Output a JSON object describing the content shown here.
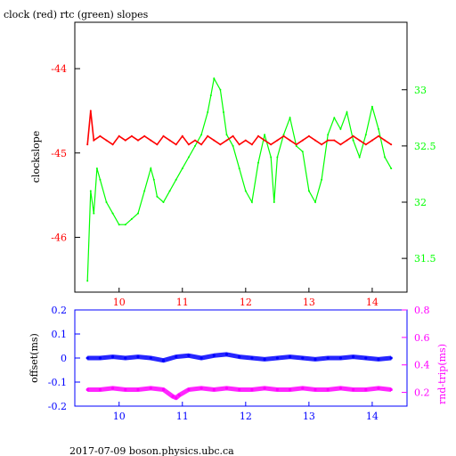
{
  "title": "clock (red) rtc (green) slopes",
  "footer": "2017-07-09  boson.physics.ubc.ca",
  "colors": {
    "red": "#ff0000",
    "green": "#00ff00",
    "blue": "#0000ff",
    "magenta": "#ff00ff",
    "frame": "#000000"
  },
  "chart_data": [
    {
      "type": "line",
      "title": "clock (red) rtc (green) slopes",
      "ylabel": "clockslope",
      "ylabel_right": "",
      "xlim": [
        9.3,
        14.55
      ],
      "ylim": [
        -46.65,
        -43.45
      ],
      "ylim_right": [
        31.2,
        33.6
      ],
      "x_ticks": [
        10,
        11,
        12,
        13,
        14
      ],
      "y_ticks": [
        -44,
        -45,
        -46
      ],
      "y_ticks_right": [
        33,
        32.5,
        32,
        31.5
      ],
      "series": [
        {
          "color": "red",
          "axis": "left",
          "x": [
            9.5,
            9.55,
            9.6,
            9.7,
            9.8,
            9.9,
            10.0,
            10.1,
            10.2,
            10.3,
            10.4,
            10.5,
            10.6,
            10.7,
            10.8,
            10.9,
            11.0,
            11.1,
            11.2,
            11.3,
            11.4,
            11.5,
            11.6,
            11.7,
            11.8,
            11.9,
            12.0,
            12.1,
            12.2,
            12.3,
            12.4,
            12.5,
            12.6,
            12.7,
            12.8,
            12.9,
            13.0,
            13.1,
            13.2,
            13.3,
            13.4,
            13.5,
            13.6,
            13.7,
            13.8,
            13.9,
            14.0,
            14.1,
            14.2,
            14.3
          ],
          "y": [
            -44.9,
            -44.5,
            -44.85,
            -44.8,
            -44.85,
            -44.9,
            -44.8,
            -44.85,
            -44.8,
            -44.85,
            -44.8,
            -44.85,
            -44.9,
            -44.8,
            -44.85,
            -44.9,
            -44.8,
            -44.9,
            -44.85,
            -44.9,
            -44.8,
            -44.85,
            -44.9,
            -44.85,
            -44.8,
            -44.9,
            -44.85,
            -44.9,
            -44.8,
            -44.85,
            -44.9,
            -44.85,
            -44.8,
            -44.85,
            -44.9,
            -44.85,
            -44.8,
            -44.85,
            -44.9,
            -44.85,
            -44.85,
            -44.9,
            -44.85,
            -44.8,
            -44.85,
            -44.9,
            -44.85,
            -44.8,
            -44.85,
            -44.9
          ]
        },
        {
          "color": "green",
          "axis": "right",
          "x": [
            9.5,
            9.55,
            9.6,
            9.65,
            9.7,
            9.8,
            9.9,
            10.0,
            10.1,
            10.2,
            10.3,
            10.4,
            10.5,
            10.55,
            10.6,
            10.7,
            10.8,
            10.9,
            11.0,
            11.1,
            11.2,
            11.3,
            11.4,
            11.45,
            11.5,
            11.6,
            11.65,
            11.7,
            11.8,
            11.9,
            12.0,
            12.1,
            12.2,
            12.3,
            12.4,
            12.45,
            12.5,
            12.6,
            12.7,
            12.8,
            12.9,
            13.0,
            13.1,
            13.2,
            13.3,
            13.4,
            13.5,
            13.6,
            13.7,
            13.8,
            13.9,
            14.0,
            14.1,
            14.2,
            14.3
          ],
          "y": [
            31.3,
            32.1,
            31.9,
            32.3,
            32.2,
            32.0,
            31.9,
            31.8,
            31.8,
            31.85,
            31.9,
            32.1,
            32.3,
            32.2,
            32.05,
            32.0,
            32.1,
            32.2,
            32.3,
            32.4,
            32.5,
            32.6,
            32.8,
            32.95,
            33.1,
            33.0,
            32.8,
            32.6,
            32.5,
            32.3,
            32.1,
            32.0,
            32.35,
            32.6,
            32.4,
            32.0,
            32.4,
            32.6,
            32.75,
            32.5,
            32.45,
            32.1,
            32.0,
            32.2,
            32.6,
            32.75,
            32.65,
            32.8,
            32.55,
            32.4,
            32.6,
            32.85,
            32.65,
            32.4,
            32.3
          ]
        }
      ]
    },
    {
      "type": "scatter",
      "ylabel": "offset(ms)",
      "ylabel_right": "rnd-trip(ms)",
      "xlim": [
        9.3,
        14.55
      ],
      "ylim": [
        -0.2,
        0.2
      ],
      "ylim_right": [
        0.1,
        0.8
      ],
      "x_ticks": [
        10,
        11,
        12,
        13,
        14
      ],
      "y_ticks": [
        0.2,
        0.1,
        0,
        -0.1,
        -0.2
      ],
      "y_ticks_right": [
        0.8,
        0.6,
        0.4,
        0.2
      ],
      "series": [
        {
          "color": "blue",
          "axis": "left",
          "x": [
            9.5,
            9.7,
            9.9,
            10.1,
            10.3,
            10.5,
            10.7,
            10.9,
            11.1,
            11.3,
            11.5,
            11.7,
            11.9,
            12.1,
            12.3,
            12.5,
            12.7,
            12.9,
            13.1,
            13.3,
            13.5,
            13.7,
            13.9,
            14.1,
            14.3
          ],
          "y": [
            0.0,
            0.0,
            0.005,
            0.0,
            0.005,
            0.0,
            -0.01,
            0.005,
            0.01,
            0.0,
            0.01,
            0.015,
            0.005,
            0.0,
            -0.005,
            0.0,
            0.005,
            0.0,
            -0.005,
            0.0,
            0.0,
            0.005,
            0.0,
            -0.005,
            0.0
          ]
        },
        {
          "color": "magenta",
          "axis": "right",
          "x": [
            9.5,
            9.7,
            9.9,
            10.1,
            10.3,
            10.5,
            10.7,
            10.85,
            10.9,
            10.95,
            11.1,
            11.3,
            11.5,
            11.7,
            11.9,
            12.1,
            12.3,
            12.5,
            12.7,
            12.9,
            13.1,
            13.3,
            13.5,
            13.7,
            13.9,
            14.1,
            14.3
          ],
          "y": [
            0.22,
            0.22,
            0.23,
            0.22,
            0.22,
            0.23,
            0.22,
            0.17,
            0.16,
            0.18,
            0.22,
            0.23,
            0.22,
            0.23,
            0.22,
            0.22,
            0.23,
            0.22,
            0.22,
            0.23,
            0.22,
            0.22,
            0.23,
            0.22,
            0.22,
            0.23,
            0.22
          ]
        }
      ]
    }
  ]
}
